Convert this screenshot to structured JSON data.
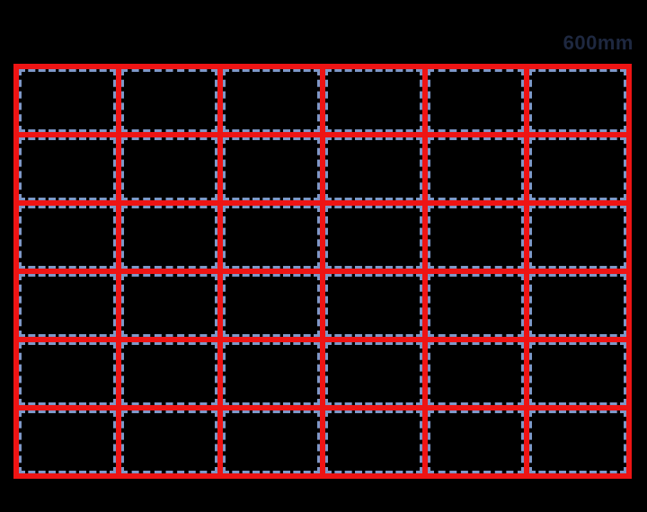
{
  "page": {
    "background_color": "#000000"
  },
  "diagram": {
    "dimension_label": "600mm",
    "grid": {
      "rows": 6,
      "cols": 6
    },
    "colors": {
      "grid_line_red": "#ee1414",
      "panel_dashed_blue": "#7e98c8",
      "label_text": "#1e2840"
    }
  }
}
